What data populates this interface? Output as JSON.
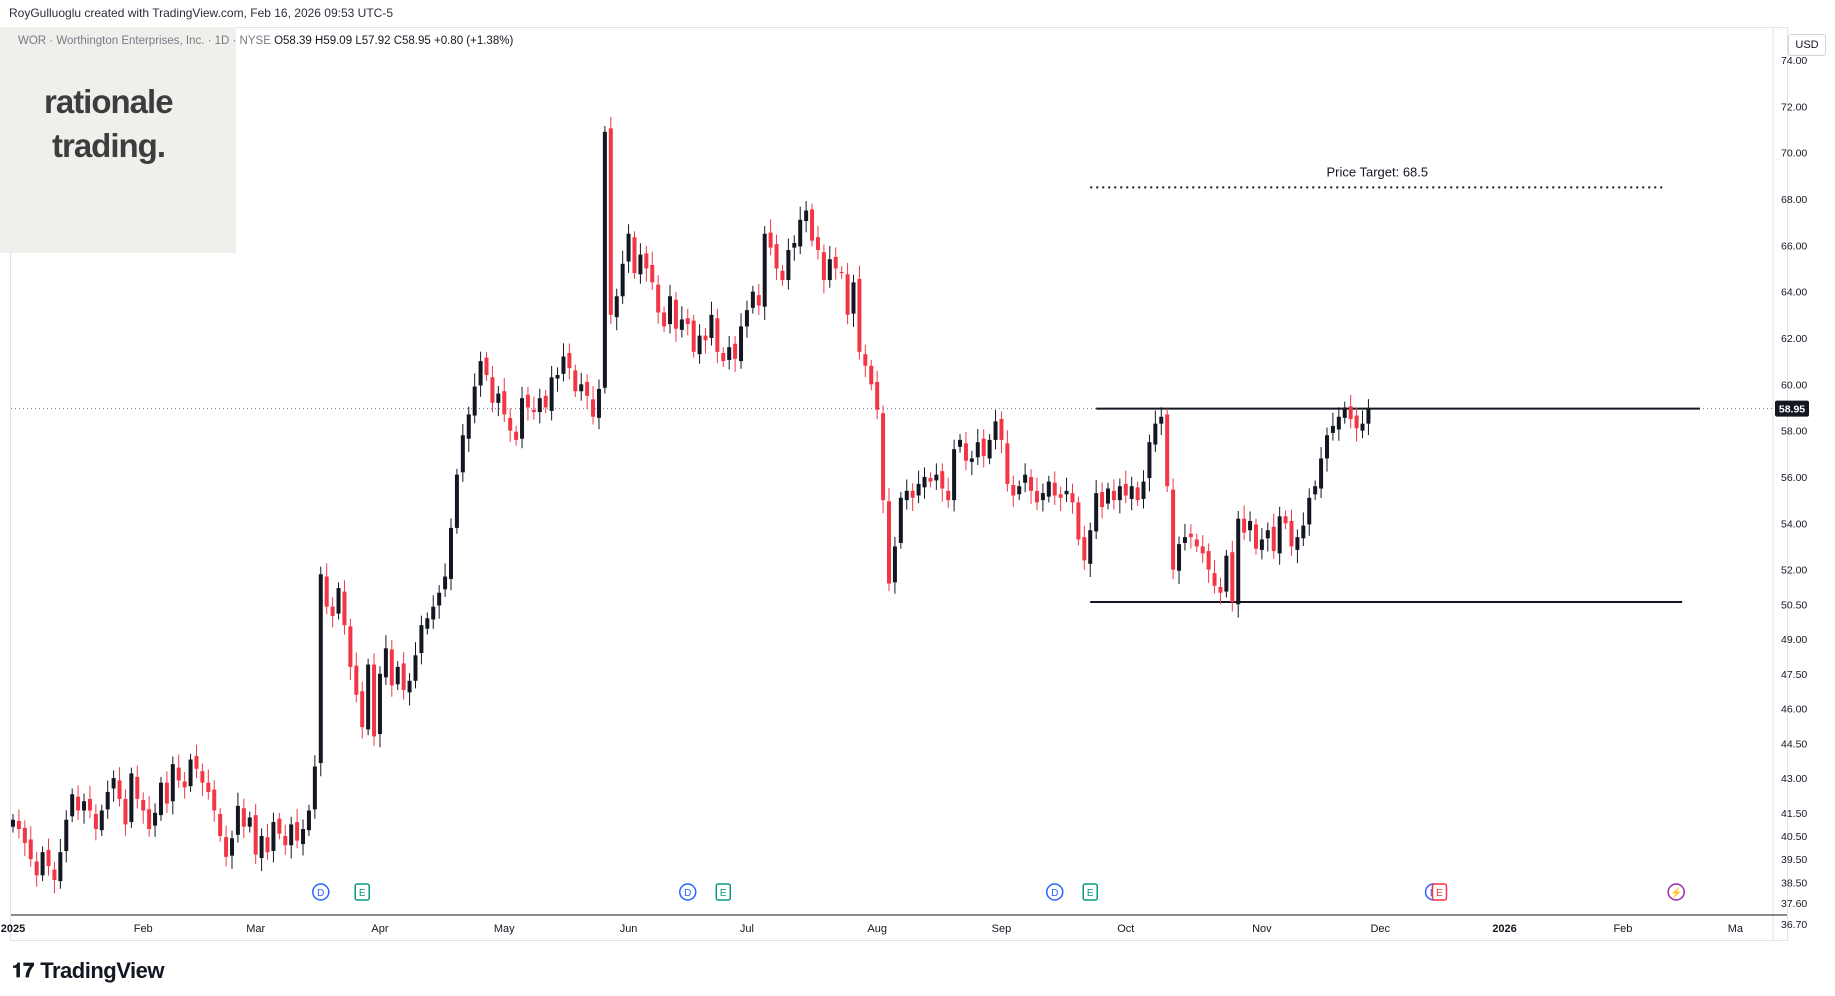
{
  "header": {
    "attribution": "RoyGulluoglu created with TradingView.com, Feb 16, 2026 09:53 UTC-5"
  },
  "legend": {
    "symbol": "WOR · Worthington Enterprises, Inc. · 1D · NYSE",
    "open": "O58.39",
    "high": "H59.09",
    "low": "L57.92",
    "close": "C58.95",
    "change": "+0.80 (+1.38%)"
  },
  "brand": {
    "line1": "rationale",
    "line2": "trading."
  },
  "currency": "USD",
  "footer": {
    "logo_text": "TradingView"
  },
  "colors": {
    "up": "#131722",
    "down": "#f23645",
    "level_line": "#131722",
    "badge_bg": "#131722"
  },
  "chart_data": {
    "type": "candlestick",
    "symbol": "WOR",
    "timeframe": "1D",
    "ylim": [
      36.7,
      74.0
    ],
    "y_ticks": [
      "74.00",
      "72.00",
      "70.00",
      "68.00",
      "66.00",
      "64.00",
      "62.00",
      "60.00",
      "58.00",
      "56.00",
      "54.00",
      "52.00",
      "50.50",
      "49.00",
      "47.50",
      "46.00",
      "44.50",
      "43.00",
      "41.50",
      "40.50",
      "39.50",
      "38.50",
      "37.60",
      "36.70"
    ],
    "x_ticks": [
      {
        "label": "2025",
        "day": 0
      },
      {
        "label": "Feb",
        "day": 22
      },
      {
        "label": "Mar",
        "day": 41
      },
      {
        "label": "Apr",
        "day": 62
      },
      {
        "label": "May",
        "day": 83
      },
      {
        "label": "Jun",
        "day": 104
      },
      {
        "label": "Jul",
        "day": 124
      },
      {
        "label": "Aug",
        "day": 146
      },
      {
        "label": "Sep",
        "day": 167
      },
      {
        "label": "Oct",
        "day": 188
      },
      {
        "label": "Nov",
        "day": 211
      },
      {
        "label": "Dec",
        "day": 231
      },
      {
        "label": "2026",
        "day": 252
      },
      {
        "label": "Feb",
        "day": 272
      },
      {
        "label": "Ma",
        "day": 291
      }
    ],
    "last_price": "58.95",
    "current_price_line": 58.95,
    "price_target": {
      "label": "Price Target: 68.5",
      "value": 68.5,
      "from_day": 182,
      "to_day": 279
    },
    "range_lines": [
      {
        "value": 58.95,
        "from_day": 183,
        "to_day": 285
      },
      {
        "value": 50.6,
        "from_day": 182,
        "to_day": 282
      }
    ],
    "events": [
      {
        "type": "dividend",
        "label": "D",
        "day": 52
      },
      {
        "type": "earnings",
        "label": "E",
        "day": 59
      },
      {
        "type": "dividend",
        "label": "D",
        "day": 114
      },
      {
        "type": "earnings",
        "label": "E",
        "day": 120
      },
      {
        "type": "dividend",
        "label": "D",
        "day": 176
      },
      {
        "type": "earnings",
        "label": "E",
        "day": 182
      },
      {
        "type": "dividend",
        "label": "D",
        "day": 240
      },
      {
        "type": "earnings",
        "label": "E",
        "day": 241
      },
      {
        "type": "flash",
        "label": "⚡",
        "day": 281
      }
    ],
    "candles_close": [
      41.2,
      40.8,
      40.2,
      39.5,
      38.8,
      39.8,
      39.2,
      38.6,
      39.8,
      41.2,
      42.3,
      41.6,
      42.0,
      41.6,
      40.8,
      41.6,
      42.4,
      43.0,
      42.1,
      41.0,
      43.2,
      42.1,
      41.6,
      40.8,
      41.5,
      42.8,
      41.9,
      43.6,
      42.9,
      42.6,
      43.8,
      43.4,
      42.8,
      42.4,
      41.6,
      40.5,
      39.6,
      40.4,
      41.8,
      40.9,
      41.3,
      39.7,
      40.5,
      39.8,
      41.1,
      40.6,
      40.1,
      41.0,
      40.3,
      40.8,
      41.6,
      43.5,
      51.8,
      50.4,
      50.0,
      51.2,
      49.6,
      47.8,
      46.6,
      45.2,
      47.9,
      44.8,
      47.5,
      48.6,
      47.0,
      47.8,
      46.8,
      47.2,
      48.3,
      49.6,
      49.9,
      50.4,
      51.0,
      51.7,
      53.8,
      56.1,
      57.8,
      58.7,
      59.9,
      61.0,
      60.4,
      59.2,
      59.6,
      58.7,
      58.0,
      57.6,
      59.4,
      59.0,
      58.8,
      59.4,
      59.0,
      60.3,
      60.4,
      61.2,
      60.7,
      59.7,
      60.0,
      59.5,
      58.6,
      59.8,
      70.9,
      63.0,
      63.8,
      65.2,
      66.5,
      64.8,
      65.6,
      65.0,
      64.4,
      63.1,
      62.5,
      63.8,
      62.4,
      62.8,
      62.6,
      61.4,
      62.1,
      61.9,
      63.0,
      61.4,
      61.0,
      61.6,
      61.1,
      62.5,
      63.2,
      64.0,
      63.4,
      66.5,
      65.9,
      65.0,
      64.5,
      65.8,
      66.1,
      67.1,
      67.5,
      66.2,
      65.8,
      64.5,
      65.4,
      65.0,
      64.8,
      63.0,
      64.4,
      61.4,
      60.8,
      60.0,
      58.9,
      55.0,
      51.4,
      53.0,
      55.1,
      55.4,
      55.1,
      55.7,
      56.0,
      55.8,
      56.1,
      55.5,
      55.0,
      57.2,
      57.6,
      56.7,
      56.8,
      57.5,
      56.9,
      57.6,
      58.4,
      57.6,
      55.7,
      55.2,
      55.6,
      56.1,
      55.4,
      54.9,
      55.3,
      55.8,
      55.2,
      55.1,
      55.4,
      54.9,
      53.3,
      52.4,
      53.7,
      55.3,
      54.7,
      55.5,
      55.0,
      55.6,
      55.2,
      55.6,
      55.0,
      55.8,
      57.5,
      58.3,
      58.6,
      55.6,
      52.0,
      53.1,
      53.4,
      53.4,
      53.0,
      52.7,
      52.0,
      51.3,
      51.0,
      52.6,
      50.6,
      54.2,
      53.6,
      54.1,
      52.9,
      53.3,
      53.7,
      52.8,
      54.3,
      54.0,
      53.0,
      53.4,
      53.9,
      55.1,
      55.6,
      56.8,
      57.8,
      58.2,
      58.6,
      59.0,
      58.5,
      58.1,
      58.3,
      58.95
    ]
  }
}
